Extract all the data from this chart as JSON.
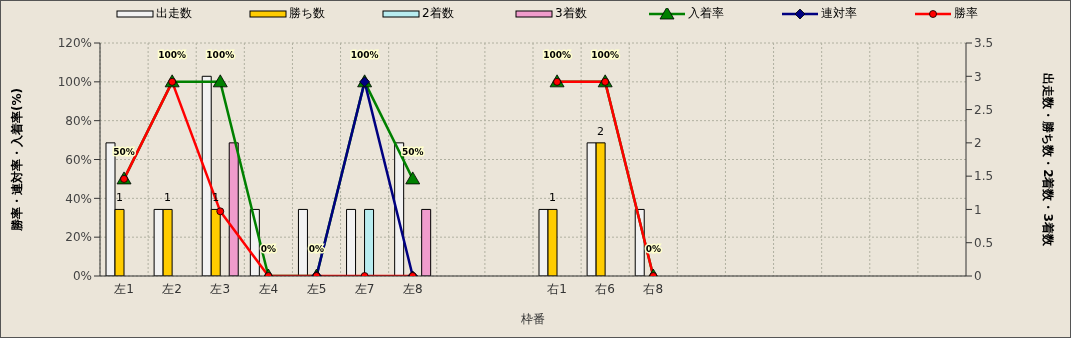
{
  "chart_data": {
    "type": "bar",
    "xlabel": "枠番",
    "ylabel": "勝率・連対率・入着率(%)",
    "y2label": "出走数・勝ち数・2着数・3着数",
    "categories": [
      "左1",
      "左2",
      "左3",
      "左4",
      "左5",
      "左7",
      "左8",
      null,
      null,
      "右1",
      "右6",
      "右8",
      null,
      null,
      null,
      null,
      null,
      null
    ],
    "series": [
      {
        "name": "出走数",
        "axis": "y2",
        "color": "#f2f2f2",
        "values": [
          2,
          1,
          3,
          1,
          1,
          1,
          2,
          null,
          null,
          1,
          2,
          1,
          null,
          null,
          null,
          null,
          null,
          null
        ]
      },
      {
        "name": "勝ち数",
        "axis": "y2",
        "color": "#ffcc00",
        "values": [
          1,
          1,
          1,
          0,
          0,
          0,
          0,
          null,
          null,
          1,
          2,
          0,
          null,
          null,
          null,
          null,
          null,
          null
        ],
        "value_labels": [
          "1",
          "1",
          "1",
          null,
          null,
          null,
          null,
          null,
          null,
          "1",
          "2",
          null,
          null,
          null,
          null,
          null,
          null,
          null
        ]
      },
      {
        "name": "2着数",
        "axis": "y2",
        "color": "#b8ecf0",
        "values": [
          0,
          0,
          0,
          0,
          0,
          1,
          0,
          null,
          null,
          0,
          0,
          0,
          null,
          null,
          null,
          null,
          null,
          null
        ]
      },
      {
        "name": "3着数",
        "axis": "y2",
        "color": "#f09ccc",
        "values": [
          0,
          0,
          2,
          0,
          0,
          0,
          1,
          null,
          null,
          0,
          0,
          0,
          null,
          null,
          null,
          null,
          null,
          null
        ]
      },
      {
        "name": "入着率",
        "type": "line",
        "marker": "triangle",
        "color": "#008000",
        "values": [
          50,
          100,
          100,
          0,
          0,
          100,
          50,
          null,
          null,
          100,
          100,
          0,
          null,
          null,
          null,
          null,
          null,
          null
        ],
        "value_labels": [
          "50%",
          "100%",
          "100%",
          "0%",
          "0%",
          "100%",
          "50%",
          null,
          null,
          "100%",
          "100%",
          "0%",
          null,
          null,
          null,
          null,
          null,
          null
        ]
      },
      {
        "name": "連対率",
        "type": "line",
        "marker": "diamond",
        "color": "#000080",
        "values": [
          null,
          null,
          null,
          null,
          0,
          100,
          0,
          null,
          null,
          null,
          null,
          null,
          null,
          null,
          null,
          null,
          null,
          null
        ]
      },
      {
        "name": "勝率",
        "type": "line",
        "marker": "circle",
        "color": "#ff0000",
        "values": [
          50,
          100,
          33.3,
          0,
          0,
          0,
          0,
          null,
          null,
          100,
          100,
          0,
          null,
          null,
          null,
          null,
          null,
          null
        ]
      }
    ],
    "ylim": [
      0,
      120
    ],
    "yticks": [
      {
        "value": 0,
        "label": "0%"
      },
      {
        "value": 20,
        "label": "20%"
      },
      {
        "value": 40,
        "label": "40%"
      },
      {
        "value": 60,
        "label": "60%"
      },
      {
        "value": 80,
        "label": "80%"
      },
      {
        "value": 100,
        "label": "100%"
      },
      {
        "value": 120,
        "label": "120%"
      }
    ],
    "y2lim": [
      0,
      3.5
    ],
    "y2ticks": [
      0,
      0.5,
      1,
      1.5,
      2,
      2.5,
      3,
      3.5
    ],
    "grid": true,
    "legend": "top"
  }
}
